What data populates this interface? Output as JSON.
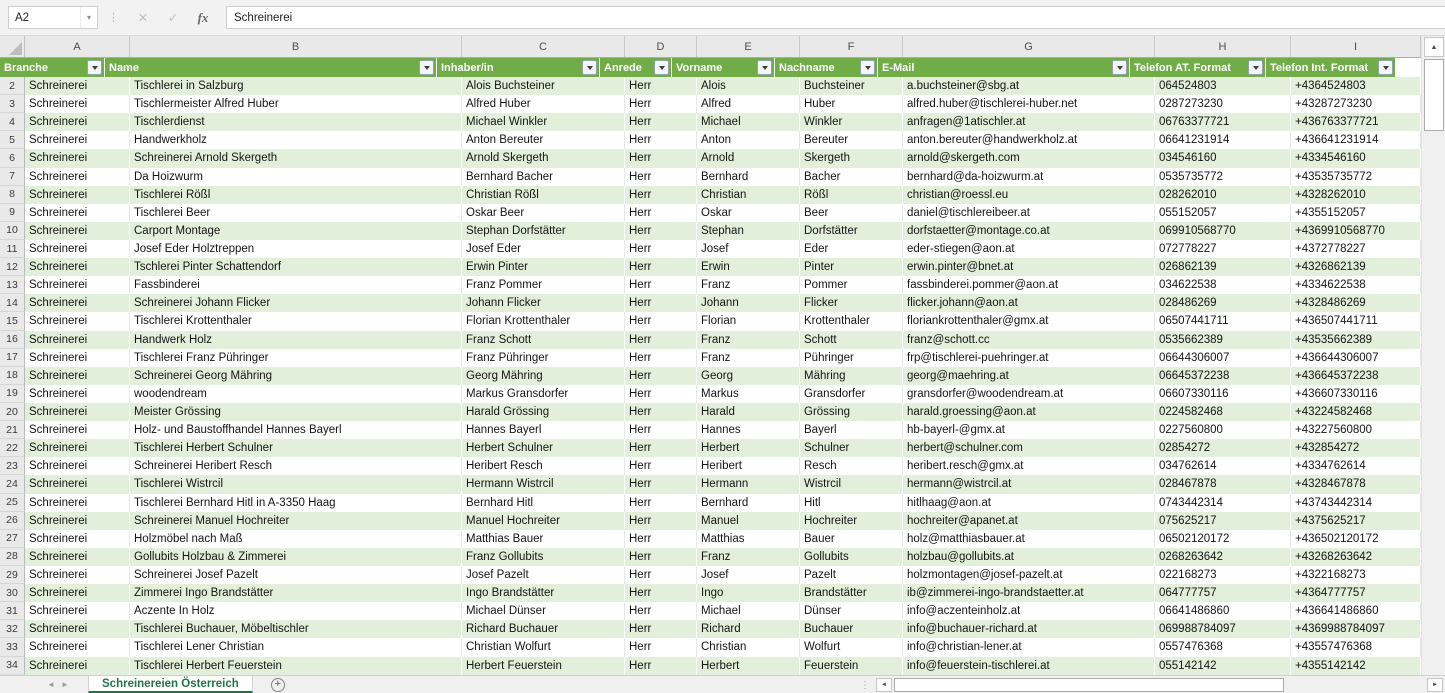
{
  "formula_bar": {
    "name_box": "A2",
    "formula": "Schreinerei"
  },
  "icons": {
    "name_box_dropdown": "▾",
    "cancel": "✕",
    "enter": "✓",
    "function": "fx",
    "scroll_up": "▲",
    "tab_nav_left": "◄",
    "tab_nav_right": "►",
    "hscroll_left": "◄",
    "hscroll_right": "►",
    "add_sheet": "+",
    "grip_dots": "⋮"
  },
  "colors": {
    "header_green": "#70AD47",
    "band_green": "#E2EFDA",
    "tab_green": "#217346"
  },
  "sheet_bar": {
    "tab_label": "Schreinereien Österreich"
  },
  "grid": {
    "columns": [
      {
        "letter": "A",
        "label": "Branche"
      },
      {
        "letter": "B",
        "label": "Name"
      },
      {
        "letter": "C",
        "label": "Inhaber/in"
      },
      {
        "letter": "D",
        "label": "Anrede"
      },
      {
        "letter": "E",
        "label": "Vorname"
      },
      {
        "letter": "F",
        "label": "Nachname"
      },
      {
        "letter": "G",
        "label": "E-Mail"
      },
      {
        "letter": "H",
        "label": "Telefon AT. Format"
      },
      {
        "letter": "I",
        "label": "Telefon Int. Format"
      }
    ],
    "rows": [
      {
        "n": 2,
        "cells": [
          "Schreinerei",
          "Tischlerei in Salzburg",
          "Alois Buchsteiner",
          "Herr",
          "Alois",
          "Buchsteiner",
          "a.buchsteiner@sbg.at",
          "064524803",
          "+4364524803"
        ]
      },
      {
        "n": 3,
        "cells": [
          "Schreinerei",
          "Tischlermeister Alfred Huber",
          "Alfred Huber",
          "Herr",
          "Alfred",
          "Huber",
          "alfred.huber@tischlerei-huber.net",
          "0287273230",
          "+43287273230"
        ]
      },
      {
        "n": 4,
        "cells": [
          "Schreinerei",
          "Tischlerdienst",
          "Michael Winkler",
          "Herr",
          "Michael",
          "Winkler",
          "anfragen@1atischler.at",
          "06763377721",
          "+436763377721"
        ]
      },
      {
        "n": 5,
        "cells": [
          "Schreinerei",
          "Handwerkholz",
          "Anton Bereuter",
          "Herr",
          "Anton",
          "Bereuter",
          "anton.bereuter@handwerkholz.at",
          "06641231914",
          "+436641231914"
        ]
      },
      {
        "n": 6,
        "cells": [
          "Schreinerei",
          "Schreinerei Arnold Skergeth",
          "Arnold Skergeth",
          "Herr",
          "Arnold",
          "Skergeth",
          "arnold@skergeth.com",
          "034546160",
          "+4334546160"
        ]
      },
      {
        "n": 7,
        "cells": [
          "Schreinerei",
          "Da Hoizwurm",
          "Bernhard Bacher",
          "Herr",
          "Bernhard",
          "Bacher",
          "bernhard@da-hoizwurm.at",
          "0535735772",
          "+43535735772"
        ]
      },
      {
        "n": 8,
        "cells": [
          "Schreinerei",
          "Tischlerei Rößl",
          "Christian Rößl",
          "Herr",
          "Christian",
          "Rößl",
          "christian@roessl.eu",
          "028262010",
          "+4328262010"
        ]
      },
      {
        "n": 9,
        "cells": [
          "Schreinerei",
          "Tischlerei Beer",
          "Oskar Beer",
          "Herr",
          "Oskar",
          "Beer",
          "daniel@tischlereibeer.at",
          "055152057",
          "+4355152057"
        ]
      },
      {
        "n": 10,
        "cells": [
          "Schreinerei",
          "Carport Montage",
          "Stephan Dorfstätter",
          "Herr",
          "Stephan",
          "Dorfstätter",
          "dorfstaetter@montage.co.at",
          "069910568770",
          "+4369910568770"
        ]
      },
      {
        "n": 11,
        "cells": [
          "Schreinerei",
          "Josef Eder Holztreppen",
          "Josef Eder",
          "Herr",
          "Josef",
          "Eder",
          "eder-stiegen@aon.at",
          "072778227",
          "+4372778227"
        ]
      },
      {
        "n": 12,
        "cells": [
          "Schreinerei",
          "Tschlerei Pinter Schattendorf",
          "Erwin Pinter",
          "Herr",
          "Erwin",
          "Pinter",
          "erwin.pinter@bnet.at",
          "026862139",
          "+4326862139"
        ]
      },
      {
        "n": 13,
        "cells": [
          "Schreinerei",
          "Fassbinderei",
          "Franz Pommer",
          "Herr",
          "Franz",
          "Pommer",
          "fassbinderei.pommer@aon.at",
          "034622538",
          "+4334622538"
        ]
      },
      {
        "n": 14,
        "cells": [
          "Schreinerei",
          "Schreinerei Johann Flicker",
          "Johann Flicker",
          "Herr",
          "Johann",
          "Flicker",
          "flicker.johann@aon.at",
          "028486269",
          "+4328486269"
        ]
      },
      {
        "n": 15,
        "cells": [
          "Schreinerei",
          "Tischlerei Krottenthaler",
          "Florian Krottenthaler",
          "Herr",
          "Florian",
          "Krottenthaler",
          "floriankrottenthaler@gmx.at",
          "06507441711",
          "+436507441711"
        ]
      },
      {
        "n": 16,
        "cells": [
          "Schreinerei",
          "Handwerk Holz",
          "Franz Schott",
          "Herr",
          "Franz",
          "Schott",
          "franz@schott.cc",
          "0535662389",
          "+43535662389"
        ]
      },
      {
        "n": 17,
        "cells": [
          "Schreinerei",
          "Tischlerei Franz Pühringer",
          "Franz Pühringer",
          "Herr",
          "Franz",
          "Pühringer",
          "frp@tischlerei-puehringer.at",
          "06644306007",
          "+436644306007"
        ]
      },
      {
        "n": 18,
        "cells": [
          "Schreinerei",
          "Schreinerei Georg Mähring",
          "Georg Mähring",
          "Herr",
          "Georg",
          "Mähring",
          "georg@maehring.at",
          "06645372238",
          "+436645372238"
        ]
      },
      {
        "n": 19,
        "cells": [
          "Schreinerei",
          "woodendream",
          "Markus Gransdorfer",
          "Herr",
          "Markus",
          "Gransdorfer",
          "gransdorfer@woodendream.at",
          "06607330116",
          "+436607330116"
        ]
      },
      {
        "n": 20,
        "cells": [
          "Schreinerei",
          "Meister Grössing",
          "Harald Grössing",
          "Herr",
          "Harald",
          "Grössing",
          "harald.groessing@aon.at",
          "0224582468",
          "+43224582468"
        ]
      },
      {
        "n": 21,
        "cells": [
          "Schreinerei",
          "Holz- und Baustoffhandel Hannes Bayerl",
          "Hannes Bayerl",
          "Herr",
          "Hannes",
          "Bayerl",
          "hb-bayerl-@gmx.at",
          "0227560800",
          "+43227560800"
        ]
      },
      {
        "n": 22,
        "cells": [
          "Schreinerei",
          "Tischlerei Herbert Schulner",
          "Herbert Schulner",
          "Herr",
          "Herbert",
          "Schulner",
          "herbert@schulner.com",
          "02854272",
          "+432854272"
        ]
      },
      {
        "n": 23,
        "cells": [
          "Schreinerei",
          "Schreinerei Heribert Resch",
          "Heribert Resch",
          "Herr",
          "Heribert",
          "Resch",
          "heribert.resch@gmx.at",
          "034762614",
          "+4334762614"
        ]
      },
      {
        "n": 24,
        "cells": [
          "Schreinerei",
          "Tischlerei Wistrcil",
          "Hermann Wistrcil",
          "Herr",
          "Hermann",
          "Wistrcil",
          "hermann@wistrcil.at",
          "028467878",
          "+4328467878"
        ]
      },
      {
        "n": 25,
        "cells": [
          "Schreinerei",
          "Tischlerei Bernhard Hitl in A-3350 Haag",
          "Bernhard Hitl",
          "Herr",
          "Bernhard",
          "Hitl",
          "hitlhaag@aon.at",
          "0743442314",
          "+43743442314"
        ]
      },
      {
        "n": 26,
        "cells": [
          "Schreinerei",
          "Schreinerei Manuel Hochreiter",
          "Manuel Hochreiter",
          "Herr",
          "Manuel",
          "Hochreiter",
          "hochreiter@apanet.at",
          "075625217",
          "+4375625217"
        ]
      },
      {
        "n": 27,
        "cells": [
          "Schreinerei",
          "Holzmöbel nach Maß",
          "Matthias Bauer",
          "Herr",
          "Matthias",
          "Bauer",
          "holz@matthiasbauer.at",
          "06502120172",
          "+436502120172"
        ]
      },
      {
        "n": 28,
        "cells": [
          "Schreinerei",
          "Gollubits Holzbau & Zimmerei",
          "Franz Gollubits",
          "Herr",
          "Franz",
          "Gollubits",
          "holzbau@gollubits.at",
          "0268263642",
          "+43268263642"
        ]
      },
      {
        "n": 29,
        "cells": [
          "Schreinerei",
          "Schreinerei Josef Pazelt",
          "Josef Pazelt",
          "Herr",
          "Josef",
          "Pazelt",
          "holzmontagen@josef-pazelt.at",
          "022168273",
          "+4322168273"
        ]
      },
      {
        "n": 30,
        "cells": [
          "Schreinerei",
          "Zimmerei Ingo Brandstätter",
          "Ingo Brandstätter",
          "Herr",
          "Ingo",
          "Brandstätter",
          "ib@zimmerei-ingo-brandstaetter.at",
          "064777757",
          "+4364777757"
        ]
      },
      {
        "n": 31,
        "cells": [
          "Schreinerei",
          "Aczente In Holz",
          "Michael Dünser",
          "Herr",
          "Michael",
          "Dünser",
          "info@aczenteinholz.at",
          "06641486860",
          "+436641486860"
        ]
      },
      {
        "n": 32,
        "cells": [
          "Schreinerei",
          "Tischlerei Buchauer, Möbeltischler",
          "Richard Buchauer",
          "Herr",
          "Richard",
          "Buchauer",
          "info@buchauer-richard.at",
          "069988784097",
          "+4369988784097"
        ]
      },
      {
        "n": 33,
        "cells": [
          "Schreinerei",
          "Tischlerei Lener Christian",
          "Christian Wolfurt",
          "Herr",
          "Christian",
          "Wolfurt",
          "info@christian-lener.at",
          "0557476368",
          "+43557476368"
        ]
      },
      {
        "n": 34,
        "cells": [
          "Schreinerei",
          "Tischlerei Herbert Feuerstein",
          "Herbert Feuerstein",
          "Herr",
          "Herbert",
          "Feuerstein",
          "info@feuerstein-tischlerei.at",
          "055142142",
          "+4355142142"
        ]
      }
    ]
  }
}
